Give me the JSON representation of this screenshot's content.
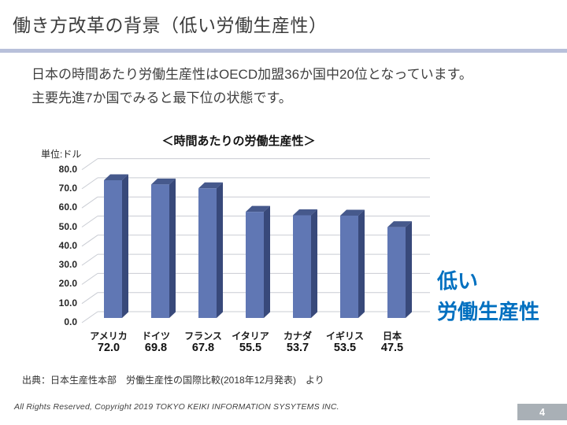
{
  "slide": {
    "title": "働き方改革の背景（低い労働生産性）",
    "body_lines": [
      "日本の時間あたり労働生産性はOECD加盟36か国中20位となっています。",
      "主要先進7か国でみると最下位の状態です。"
    ],
    "highlight": {
      "line1": "低い",
      "line2": "労働生産性",
      "color": "#0070c0"
    },
    "source": "出典：日本生産性本部　労働生産性の国際比較(2018年12月発表)　より",
    "footer": "All Rights Reserved, Copyright 2019 TOKYO KEIKI INFORMATION SYSYTEMS INC.",
    "page_number": "4",
    "colors": {
      "divider": "#b8c0da",
      "page_badge": "#a9b0b6",
      "title_text": "#3c3c3c"
    }
  },
  "chart_data": {
    "type": "bar",
    "style": "3d-column",
    "title": "＜時間あたりの労働生産性＞",
    "unit_label": "単位:ドル",
    "categories": [
      "アメリカ",
      "ドイツ",
      "フランス",
      "イタリア",
      "カナダ",
      "イギリス",
      "日本"
    ],
    "values": [
      72.0,
      69.8,
      67.8,
      55.5,
      53.7,
      53.5,
      47.5
    ],
    "value_labels": [
      "72.0",
      "69.8",
      "67.8",
      "55.5",
      "53.7",
      "53.5",
      "47.5"
    ],
    "xlabel": "",
    "ylabel": "単位:ドル",
    "ylim": [
      0,
      80
    ],
    "ytick_step": 10,
    "ytick_labels": [
      "0.0",
      "10.0",
      "20.0",
      "30.0",
      "40.0",
      "50.0",
      "60.0",
      "70.0",
      "80.0"
    ],
    "grid": true,
    "legend": "none",
    "colors": {
      "bar_front": "#6077b4",
      "bar_side": "#38497a",
      "bar_top": "#46598c",
      "gridline": "#c9ccd3"
    }
  }
}
